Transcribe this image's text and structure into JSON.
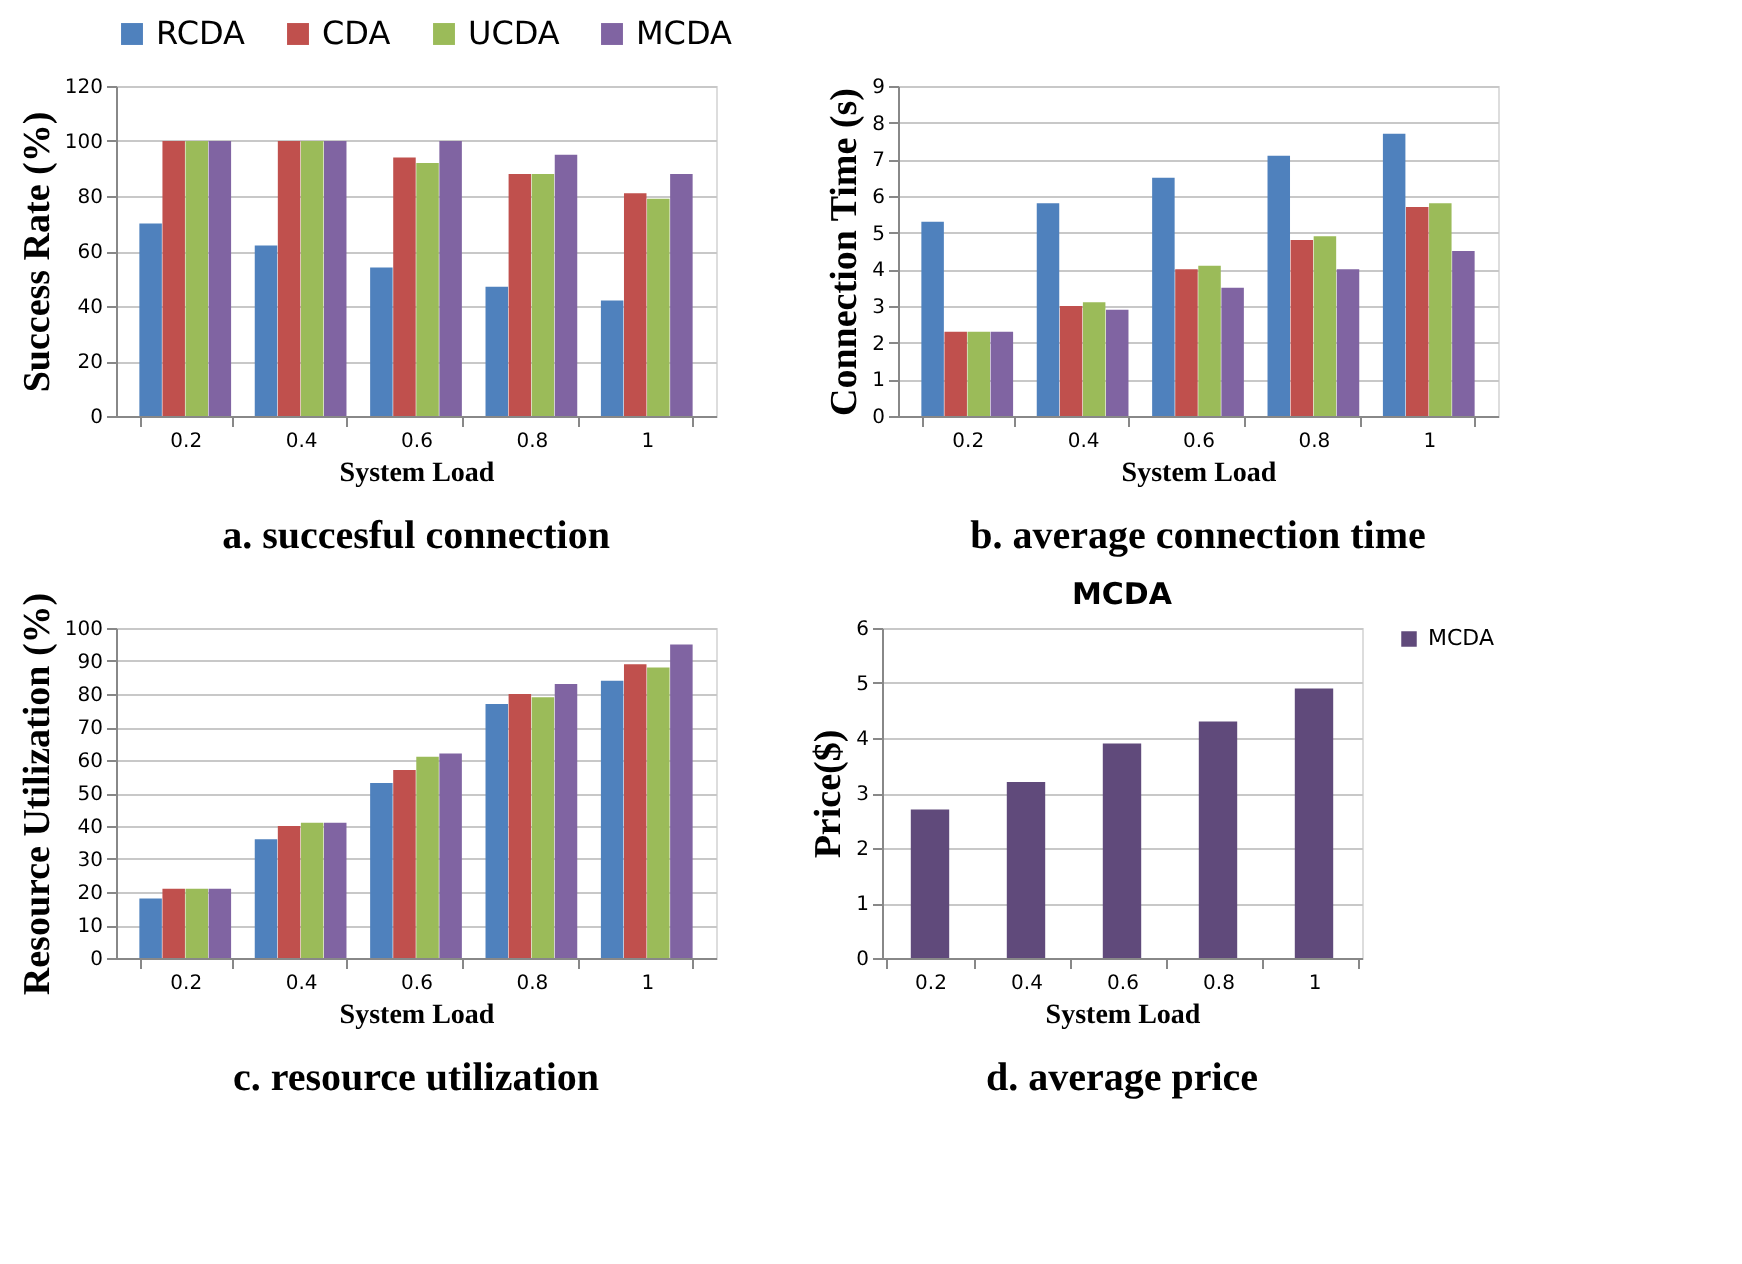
{
  "chart_data": [
    {
      "type": "bar",
      "xlabel": "System Load",
      "ylabel": "Success Rate (%)",
      "categories": [
        "0.2",
        "0.4",
        "0.6",
        "0.8",
        "1"
      ],
      "ylim": [
        0,
        120
      ],
      "yticks": [
        0,
        20,
        40,
        60,
        80,
        100,
        120
      ],
      "grid": "y",
      "legend": "top",
      "annotations": [
        "a. succesful connection"
      ],
      "series": [
        {
          "name": "RCDA",
          "color": "#4f81bd",
          "values": [
            70,
            62,
            54,
            47,
            42
          ]
        },
        {
          "name": "CDA",
          "color": "#c0504d",
          "values": [
            100,
            100,
            94,
            88,
            81
          ]
        },
        {
          "name": "UCDA",
          "color": "#9bbb59",
          "values": [
            100,
            100,
            92,
            88,
            79
          ]
        },
        {
          "name": "MCDA",
          "color": "#8064a2",
          "values": [
            100,
            100,
            100,
            95,
            88
          ]
        }
      ]
    },
    {
      "type": "bar",
      "xlabel": "System Load",
      "ylabel": "Connection Time (s)",
      "categories": [
        "0.2",
        "0.4",
        "0.6",
        "0.8",
        "1"
      ],
      "ylim": [
        0,
        9
      ],
      "yticks": [
        0,
        1,
        2,
        3,
        4,
        5,
        6,
        7,
        8,
        9
      ],
      "grid": "y",
      "annotations": [
        "b. average connection time"
      ],
      "series": [
        {
          "color": "#4f81bd",
          "values": [
            5.3,
            5.8,
            6.5,
            7.1,
            7.7
          ]
        },
        {
          "color": "#c0504d",
          "values": [
            2.3,
            3.0,
            4.0,
            4.8,
            5.7
          ]
        },
        {
          "color": "#9bbb59",
          "values": [
            2.3,
            3.1,
            4.1,
            4.9,
            5.8
          ]
        },
        {
          "color": "#8064a2",
          "values": [
            2.3,
            2.9,
            3.5,
            4.0,
            4.5
          ]
        }
      ]
    },
    {
      "type": "bar",
      "xlabel": "System Load",
      "ylabel": "Resource Utilization (%)",
      "categories": [
        "0.2",
        "0.4",
        "0.6",
        "0.8",
        "1"
      ],
      "ylim": [
        0,
        100
      ],
      "yticks": [
        0,
        10,
        20,
        30,
        40,
        50,
        60,
        70,
        80,
        90,
        100
      ],
      "grid": "y",
      "annotations": [
        "c. resource utilization"
      ],
      "series": [
        {
          "color": "#4f81bd",
          "values": [
            18,
            36,
            53,
            77,
            84
          ]
        },
        {
          "color": "#c0504d",
          "values": [
            21,
            40,
            57,
            80,
            89
          ]
        },
        {
          "color": "#9bbb59",
          "values": [
            21,
            41,
            61,
            79,
            88
          ]
        },
        {
          "color": "#8064a2",
          "values": [
            21,
            41,
            62,
            83,
            95
          ]
        }
      ]
    },
    {
      "type": "bar",
      "title": "MCDA",
      "xlabel": "System Load",
      "ylabel": "Price($)",
      "categories": [
        "0.2",
        "0.4",
        "0.6",
        "0.8",
        "1"
      ],
      "ylim": [
        0,
        6
      ],
      "yticks": [
        0,
        1,
        2,
        3,
        4,
        5,
        6
      ],
      "grid": "y",
      "legend": "right",
      "annotations": [
        "d. average price"
      ],
      "series": [
        {
          "name": "MCDA",
          "color": "#604a7b",
          "values": [
            2.7,
            3.2,
            3.9,
            4.3,
            4.9
          ]
        }
      ]
    }
  ]
}
